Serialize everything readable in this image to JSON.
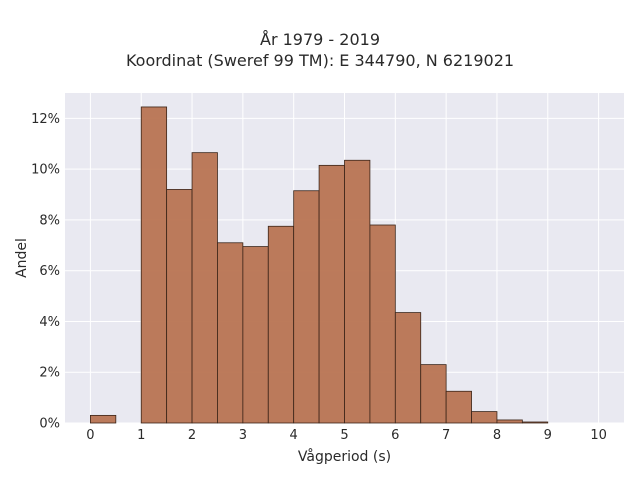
{
  "chart_data": {
    "type": "bar",
    "title": "År 1979 - 2019",
    "subtitle": "Koordinat (Sweref 99 TM): E 344790, N 6219021",
    "xlabel": "Vågperiod (s)",
    "ylabel": "Andel",
    "bin_width": 0.5,
    "bins_start": [
      0,
      0.5,
      1,
      1.5,
      2,
      2.5,
      3,
      3.5,
      4,
      4.5,
      5,
      5.5,
      6,
      6.5,
      7,
      7.5,
      8,
      8.5
    ],
    "values": [
      0.3,
      0,
      12.45,
      9.2,
      10.65,
      7.1,
      6.95,
      7.75,
      9.15,
      10.15,
      10.35,
      7.8,
      4.35,
      2.3,
      1.25,
      0.45,
      0.12,
      0.04
    ],
    "xlim": [
      -0.5,
      10.5
    ],
    "ylim": [
      0,
      13
    ],
    "x_ticks": [
      "0",
      "1",
      "2",
      "3",
      "4",
      "5",
      "6",
      "7",
      "8",
      "9",
      "10"
    ],
    "y_ticks": [
      "0%",
      "2%",
      "4%",
      "6%",
      "8%",
      "10%",
      "12%"
    ],
    "bar_color": "#b87452",
    "bar_edge_color": "#3a2418",
    "plot_background": "#e9e9f1",
    "grid": true
  }
}
